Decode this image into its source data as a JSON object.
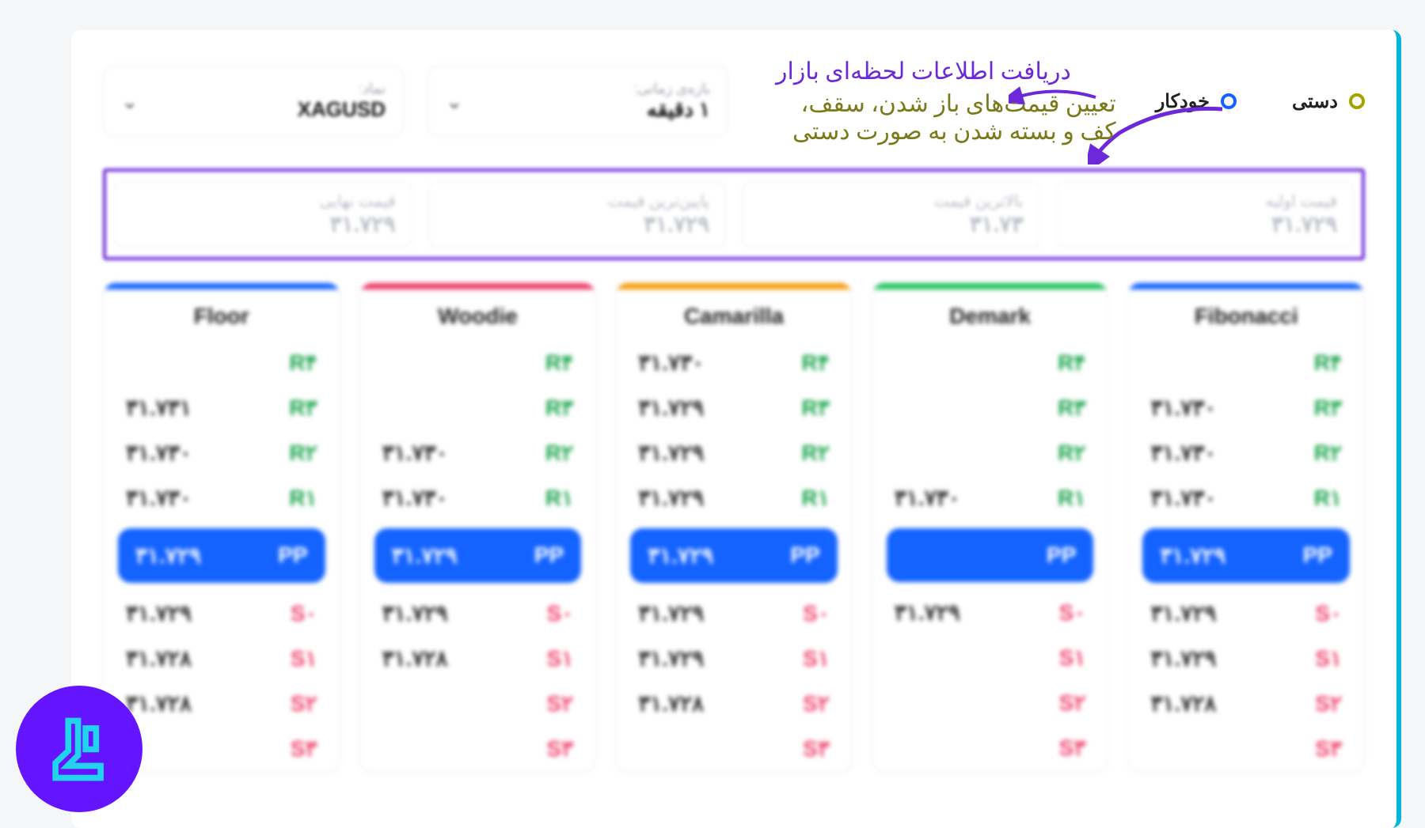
{
  "modes": {
    "manual": {
      "label": "دستی",
      "color": "#a3a300"
    },
    "auto": {
      "label": "خودکار",
      "color": "#1463ff"
    }
  },
  "annotations": {
    "auto_note": "دریافت اطلاعات لحظه‌ای بازار",
    "manual_note": "تعیین قیمت‌های باز شدن، سقف، کف و بسته شدن به صورت دستی",
    "arrow_color": "#6d28d9"
  },
  "selects": {
    "timeframe": {
      "label": "بازه‌ی زمانی:",
      "value": "۱ دقیقه"
    },
    "symbol": {
      "label": "نماد:",
      "value": "XAGUSD"
    }
  },
  "price_inputs": [
    {
      "label": "قیمت اولیه",
      "value": "۳۱.۷۲۹"
    },
    {
      "label": "بالاترین قیمت",
      "value": "۳۱.۷۳"
    },
    {
      "label": "پایین‌ترین قیمت",
      "value": "۳۱.۷۲۹"
    },
    {
      "label": "قیمت نهایی",
      "value": "۳۱.۷۲۹"
    }
  ],
  "pivot_methods": [
    {
      "name": "Floor",
      "accent": "#1463ff",
      "rows": [
        {
          "lvl": "R۴",
          "val": "",
          "cls": "r"
        },
        {
          "lvl": "R۳",
          "val": "۳۱.۷۳۱",
          "cls": "r"
        },
        {
          "lvl": "R۲",
          "val": "۳۱.۷۳۰",
          "cls": "r"
        },
        {
          "lvl": "R۱",
          "val": "۳۱.۷۳۰",
          "cls": "r"
        }
      ],
      "pp": "۳۱.۷۲۹",
      "srows": [
        {
          "lvl": "S۰",
          "val": "۳۱.۷۲۹",
          "cls": "s"
        },
        {
          "lvl": "S۱",
          "val": "۳۱.۷۲۸",
          "cls": "s"
        },
        {
          "lvl": "S۲",
          "val": "۳۱.۷۲۸",
          "cls": "s"
        },
        {
          "lvl": "S۳",
          "val": "",
          "cls": "s"
        }
      ]
    },
    {
      "name": "Woodie",
      "accent": "#ef3d6b",
      "rows": [
        {
          "lvl": "R۴",
          "val": "",
          "cls": "r"
        },
        {
          "lvl": "R۳",
          "val": "",
          "cls": "r"
        },
        {
          "lvl": "R۲",
          "val": "۳۱.۷۳۰",
          "cls": "r"
        },
        {
          "lvl": "R۱",
          "val": "۳۱.۷۳۰",
          "cls": "r"
        }
      ],
      "pp": "۳۱.۷۲۹",
      "srows": [
        {
          "lvl": "S۰",
          "val": "۳۱.۷۲۹",
          "cls": "s"
        },
        {
          "lvl": "S۱",
          "val": "۳۱.۷۲۸",
          "cls": "s"
        },
        {
          "lvl": "S۲",
          "val": "",
          "cls": "s"
        },
        {
          "lvl": "S۳",
          "val": "",
          "cls": "s"
        }
      ]
    },
    {
      "name": "Camarilla",
      "accent": "#f59e0b",
      "rows": [
        {
          "lvl": "R۴",
          "val": "۳۱.۷۳۰",
          "cls": "r"
        },
        {
          "lvl": "R۳",
          "val": "۳۱.۷۲۹",
          "cls": "r"
        },
        {
          "lvl": "R۲",
          "val": "۳۱.۷۲۹",
          "cls": "r"
        },
        {
          "lvl": "R۱",
          "val": "۳۱.۷۲۹",
          "cls": "r"
        }
      ],
      "pp": "۳۱.۷۲۹",
      "srows": [
        {
          "lvl": "S۰",
          "val": "۳۱.۷۲۹",
          "cls": "s"
        },
        {
          "lvl": "S۱",
          "val": "۳۱.۷۲۹",
          "cls": "s"
        },
        {
          "lvl": "S۲",
          "val": "۳۱.۷۲۸",
          "cls": "s"
        },
        {
          "lvl": "S۳",
          "val": "",
          "cls": "s"
        }
      ]
    },
    {
      "name": "Demark",
      "accent": "#22c55e",
      "rows": [
        {
          "lvl": "R۴",
          "val": "",
          "cls": "r"
        },
        {
          "lvl": "R۳",
          "val": "",
          "cls": "r"
        },
        {
          "lvl": "R۲",
          "val": "",
          "cls": "r"
        },
        {
          "lvl": "R۱",
          "val": "۳۱.۷۳۰",
          "cls": "r"
        }
      ],
      "pp": "",
      "srows": [
        {
          "lvl": "S۰",
          "val": "۳۱.۷۲۹",
          "cls": "s"
        },
        {
          "lvl": "S۱",
          "val": "",
          "cls": "s"
        },
        {
          "lvl": "S۲",
          "val": "",
          "cls": "s"
        },
        {
          "lvl": "S۳",
          "val": "",
          "cls": "s"
        }
      ]
    },
    {
      "name": "Fibonacci",
      "accent": "#1463ff",
      "rows": [
        {
          "lvl": "R۴",
          "val": "",
          "cls": "r"
        },
        {
          "lvl": "R۳",
          "val": "۳۱.۷۳۰",
          "cls": "r"
        },
        {
          "lvl": "R۲",
          "val": "۳۱.۷۳۰",
          "cls": "r"
        },
        {
          "lvl": "R۱",
          "val": "۳۱.۷۳۰",
          "cls": "r"
        }
      ],
      "pp": "۳۱.۷۲۹",
      "srows": [
        {
          "lvl": "S۰",
          "val": "۳۱.۷۲۹",
          "cls": "s"
        },
        {
          "lvl": "S۱",
          "val": "۳۱.۷۲۹",
          "cls": "s"
        },
        {
          "lvl": "S۲",
          "val": "۳۱.۷۲۸",
          "cls": "s"
        },
        {
          "lvl": "S۳",
          "val": "",
          "cls": "s"
        }
      ]
    }
  ],
  "pp_label": "PP",
  "logo": {
    "bg": "#6514ff",
    "stroke": "#22d3ee"
  }
}
